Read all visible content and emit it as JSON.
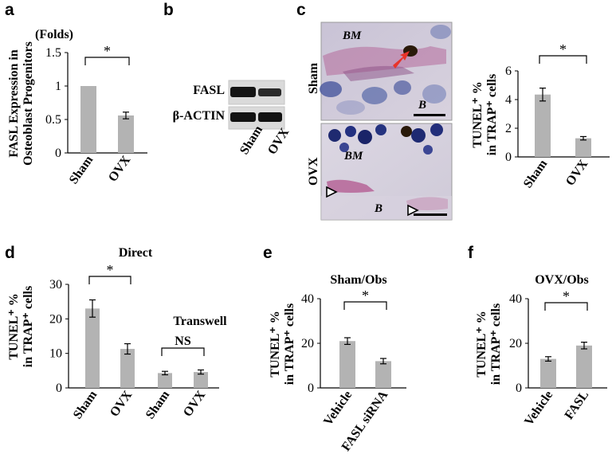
{
  "panel_labels": [
    "a",
    "b",
    "c",
    "d",
    "e",
    "f"
  ],
  "colors": {
    "bar": "#b3b3b3",
    "axis": "#000000",
    "arrow": "#e8332a"
  },
  "chart_data": [
    {
      "panel": "a",
      "type": "bar",
      "categories": [
        "Sham",
        "OVX"
      ],
      "values": [
        1.0,
        0.56
      ],
      "errors": [
        0.0,
        0.05
      ],
      "ylim": [
        0,
        1.5
      ],
      "yticks": [
        "0",
        "0.5",
        "1",
        "1.5"
      ],
      "ylabel_lines": [
        "FASL Expression in",
        "Osteoblast Progenitors"
      ],
      "unit": "(Folds)",
      "significance": [
        {
          "between": [
            0,
            1
          ],
          "label": "*"
        }
      ]
    },
    {
      "panel": "c",
      "type": "bar",
      "categories": [
        "Sham",
        "OVX"
      ],
      "values": [
        4.35,
        1.3
      ],
      "errors": [
        0.45,
        0.12
      ],
      "ylim": [
        0,
        6
      ],
      "yticks": [
        "0",
        "2",
        "4",
        "6"
      ],
      "ylabel_lines": [
        "TUNEL⁺ %",
        "in TRAP⁺ cells"
      ],
      "significance": [
        {
          "between": [
            0,
            1
          ],
          "label": "*"
        }
      ]
    },
    {
      "panel": "d",
      "type": "bar",
      "categories": [
        "Sham",
        "OVX",
        "Sham",
        "OVX"
      ],
      "values": [
        23,
        11.3,
        4.3,
        4.6
      ],
      "errors": [
        2.5,
        1.5,
        0.5,
        0.6
      ],
      "ylim": [
        0,
        30
      ],
      "yticks": [
        "0",
        "10",
        "20",
        "30"
      ],
      "ylabel_lines": [
        "TUNEL⁺ %",
        "in TRAP⁺ cells"
      ],
      "group_labels": [
        "Direct",
        "Transwell"
      ],
      "significance": [
        {
          "between": [
            0,
            1
          ],
          "label": "*"
        },
        {
          "between": [
            2,
            3
          ],
          "label": "NS"
        }
      ]
    },
    {
      "panel": "e",
      "type": "bar",
      "title": "Sham/Obs",
      "categories": [
        "Vehicle",
        "FASL  siRNA"
      ],
      "values": [
        21,
        12
      ],
      "errors": [
        1.5,
        1.2
      ],
      "ylim": [
        0,
        40
      ],
      "yticks": [
        "0",
        "20",
        "40"
      ],
      "ylabel_lines": [
        "TUNEL⁺ %",
        "in TRAP⁺ cells"
      ],
      "significance": [
        {
          "between": [
            0,
            1
          ],
          "label": "*"
        }
      ]
    },
    {
      "panel": "f",
      "type": "bar",
      "title": "OVX/Obs",
      "categories": [
        "Vehicle",
        "FASL"
      ],
      "values": [
        13,
        19
      ],
      "errors": [
        1,
        1.5
      ],
      "ylim": [
        0,
        40
      ],
      "yticks": [
        "0",
        "20",
        "40"
      ],
      "ylabel_lines": [
        "TUNEL⁺ %",
        "in TRAP⁺ cells"
      ],
      "significance": [
        {
          "between": [
            0,
            1
          ],
          "label": "*"
        }
      ]
    }
  ],
  "blot": {
    "rows": [
      "FASL",
      "β-ACTIN"
    ],
    "lanes": [
      "Sham",
      "OVX"
    ]
  },
  "micrographs": [
    {
      "group": "Sham",
      "labels": [
        "BM",
        "B"
      ]
    },
    {
      "group": "OVX",
      "labels": [
        "BM",
        "B"
      ]
    }
  ]
}
